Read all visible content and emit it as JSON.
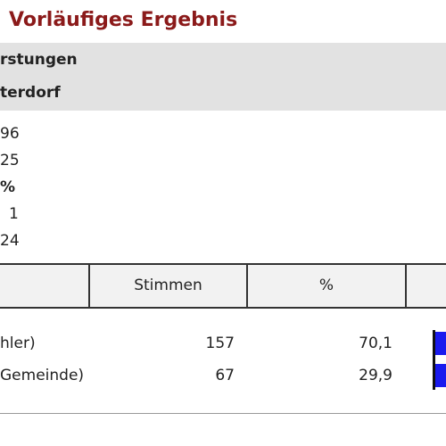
{
  "header": {
    "title": "Vorläufiges Ergebnis",
    "lines": [
      "rstungen",
      "terdorf"
    ]
  },
  "summary": [
    "96",
    "25",
    "%",
    "1",
    "24"
  ],
  "table": {
    "columns": [
      "Stimmen",
      "%"
    ],
    "rows": [
      [
        "hler)",
        "157",
        "70,1"
      ],
      [
        "Gemeinde)",
        "67",
        "29,9"
      ]
    ]
  }
}
